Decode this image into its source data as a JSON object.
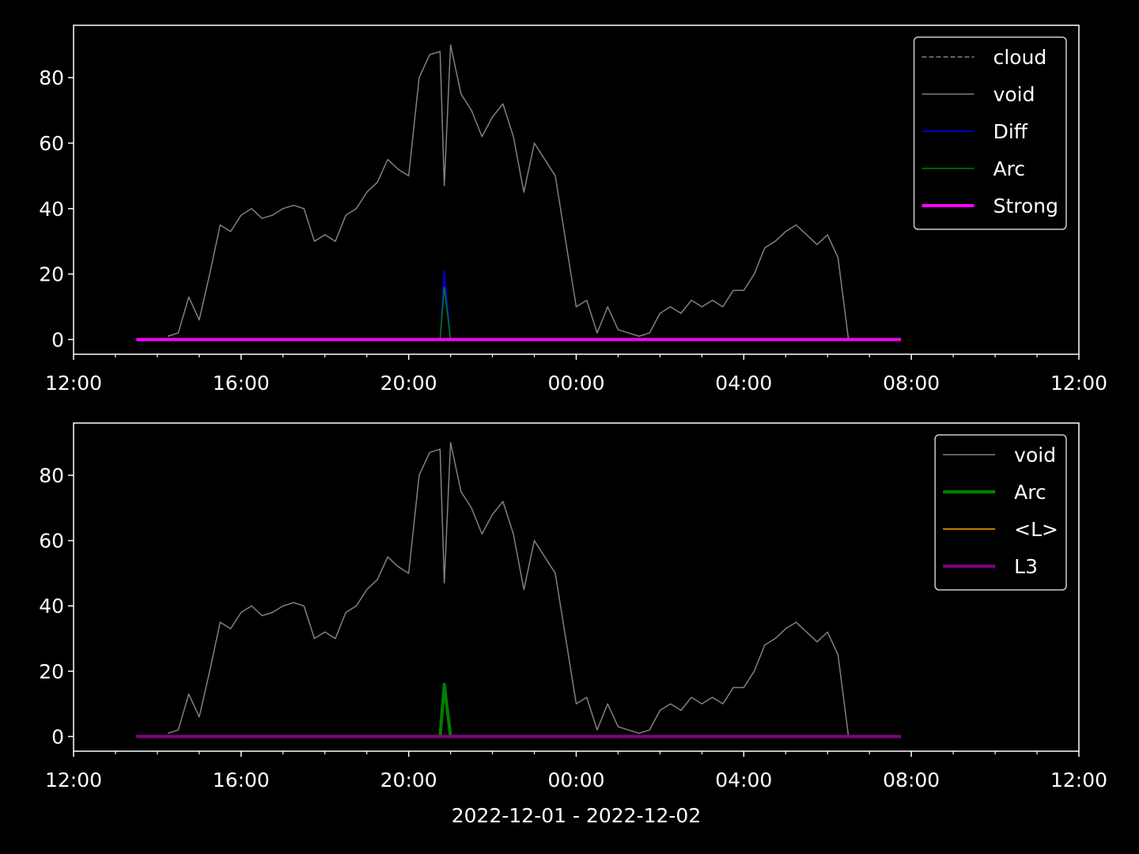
{
  "chart_data": [
    {
      "type": "line",
      "xlim": [
        12,
        36
      ],
      "xticks": [
        {
          "value": 12,
          "label": "12:00"
        },
        {
          "value": 16,
          "label": "16:00"
        },
        {
          "value": 20,
          "label": "20:00"
        },
        {
          "value": 24,
          "label": "00:00"
        },
        {
          "value": 28,
          "label": "04:00"
        },
        {
          "value": 32,
          "label": "08:00"
        },
        {
          "value": 36,
          "label": "12:00"
        }
      ],
      "xminorticks": [
        13,
        14,
        15,
        17,
        18,
        19,
        21,
        22,
        23,
        25,
        26,
        27,
        29,
        30,
        31,
        33,
        34,
        35
      ],
      "ylim": [
        -4.5,
        96
      ],
      "yticks": [
        0,
        20,
        40,
        60,
        80
      ],
      "legend": "upper right",
      "x": [
        13.5,
        13.75,
        14,
        14.25,
        14.5,
        14.75,
        15,
        15.25,
        15.5,
        15.75,
        16,
        16.25,
        16.5,
        16.75,
        17,
        17.25,
        17.5,
        17.75,
        18,
        18.25,
        18.5,
        18.75,
        19,
        19.25,
        19.5,
        19.75,
        20,
        20.25,
        20.5,
        20.75,
        20.85,
        21,
        21.25,
        21.5,
        21.75,
        22,
        22.25,
        22.5,
        22.75,
        23,
        23.25,
        23.5,
        23.75,
        24,
        24.25,
        24.5,
        24.75,
        25,
        25.25,
        25.5,
        25.75,
        26,
        26.25,
        26.5,
        26.75,
        27,
        27.25,
        27.5,
        27.75,
        28,
        28.25,
        28.5,
        28.75,
        29,
        29.25,
        29.5,
        29.75,
        30,
        30.25,
        30.5,
        30.75,
        31,
        31.25,
        31.5,
        31.75
      ],
      "series": [
        {
          "name": "cloud",
          "color": "#808080",
          "linestyle": "dashed",
          "linewidth": 1.5,
          "values": [
            0,
            0,
            0,
            0,
            0,
            0,
            0,
            0,
            0,
            0,
            0,
            0,
            0,
            0,
            0,
            0,
            0,
            0,
            0,
            0,
            0,
            0,
            0,
            0,
            0,
            0,
            0,
            0,
            0,
            0,
            0,
            0,
            0,
            0,
            0,
            0,
            0,
            0,
            0,
            0,
            0,
            0,
            0,
            0,
            0,
            0,
            0,
            0,
            0,
            0,
            0,
            0,
            0,
            0,
            0,
            0,
            0,
            0,
            0,
            0,
            0,
            0,
            0,
            0,
            0,
            0,
            0,
            0,
            0,
            0,
            0,
            0,
            0,
            0,
            0
          ]
        },
        {
          "name": "void",
          "color": "#808080",
          "linestyle": "solid",
          "linewidth": 1.5,
          "values": [
            null,
            null,
            null,
            1,
            2,
            13,
            6,
            20,
            35,
            33,
            38,
            40,
            37,
            38,
            40,
            41,
            40,
            30,
            32,
            30,
            38,
            40,
            45,
            48,
            55,
            52,
            50,
            80,
            87,
            88,
            47,
            90,
            75,
            70,
            62,
            68,
            72,
            62,
            45,
            60,
            55,
            50,
            30,
            10,
            12,
            2,
            10,
            3,
            2,
            1,
            2,
            8,
            10,
            8,
            12,
            10,
            12,
            10,
            15,
            15,
            20,
            28,
            30,
            33,
            35,
            32,
            29,
            32,
            25,
            0,
            null,
            null,
            null,
            null,
            null
          ]
        },
        {
          "name": "Diff",
          "color": "#0000ff",
          "linestyle": "solid",
          "linewidth": 1.5,
          "values": [
            0,
            0,
            0,
            0,
            0,
            0,
            0,
            0,
            0,
            0,
            0,
            0,
            0,
            0,
            0,
            0,
            0,
            0,
            0,
            0,
            0,
            0,
            0,
            0,
            0,
            0,
            0,
            0,
            0,
            0,
            21,
            0,
            0,
            0,
            0,
            0,
            0,
            0,
            0,
            0,
            0,
            0,
            0,
            0,
            0,
            0,
            0,
            0,
            0,
            0,
            0,
            0,
            0,
            0,
            0,
            0,
            0,
            0,
            0,
            0,
            0,
            0,
            0,
            0,
            0,
            0,
            0,
            0,
            0,
            0,
            0,
            0,
            0,
            0,
            0
          ]
        },
        {
          "name": "Arc",
          "color": "#008000",
          "linestyle": "solid",
          "linewidth": 1.5,
          "values": [
            0,
            0,
            0,
            0,
            0,
            0,
            0,
            0,
            0,
            0,
            0,
            0,
            0,
            0,
            0,
            0,
            0,
            0,
            0,
            0,
            0,
            0,
            0,
            0,
            0,
            0,
            0,
            0,
            0,
            0,
            16,
            0,
            0,
            0,
            0,
            0,
            0,
            0,
            0,
            0,
            0,
            0,
            0,
            0,
            0,
            0,
            0,
            0,
            0,
            0,
            0,
            0,
            0,
            0,
            0,
            0,
            0,
            0,
            0,
            0,
            0,
            0,
            0,
            0,
            0,
            0,
            0,
            0,
            0,
            0,
            0,
            0,
            0,
            0,
            0
          ]
        },
        {
          "name": "Strong",
          "color": "#ff00ff",
          "linestyle": "solid",
          "linewidth": 4,
          "values": [
            0,
            0,
            0,
            0,
            0,
            0,
            0,
            0,
            0,
            0,
            0,
            0,
            0,
            0,
            0,
            0,
            0,
            0,
            0,
            0,
            0,
            0,
            0,
            0,
            0,
            0,
            0,
            0,
            0,
            0,
            0,
            0,
            0,
            0,
            0,
            0,
            0,
            0,
            0,
            0,
            0,
            0,
            0,
            0,
            0,
            0,
            0,
            0,
            0,
            0,
            0,
            0,
            0,
            0,
            0,
            0,
            0,
            0,
            0,
            0,
            0,
            0,
            0,
            0,
            0,
            0,
            0,
            0,
            0,
            0,
            0,
            0,
            0,
            0,
            0
          ]
        }
      ]
    },
    {
      "type": "line",
      "xlabel": "2022-12-01 - 2022-12-02",
      "xlim": [
        12,
        36
      ],
      "xticks": [
        {
          "value": 12,
          "label": "12:00"
        },
        {
          "value": 16,
          "label": "16:00"
        },
        {
          "value": 20,
          "label": "20:00"
        },
        {
          "value": 24,
          "label": "00:00"
        },
        {
          "value": 28,
          "label": "04:00"
        },
        {
          "value": 32,
          "label": "08:00"
        },
        {
          "value": 36,
          "label": "12:00"
        }
      ],
      "xminorticks": [
        13,
        14,
        15,
        17,
        18,
        19,
        21,
        22,
        23,
        25,
        26,
        27,
        29,
        30,
        31,
        33,
        34,
        35
      ],
      "ylim": [
        -4.5,
        96
      ],
      "yticks": [
        0,
        20,
        40,
        60,
        80
      ],
      "legend": "upper right",
      "x": [
        13.5,
        13.75,
        14,
        14.25,
        14.5,
        14.75,
        15,
        15.25,
        15.5,
        15.75,
        16,
        16.25,
        16.5,
        16.75,
        17,
        17.25,
        17.5,
        17.75,
        18,
        18.25,
        18.5,
        18.75,
        19,
        19.25,
        19.5,
        19.75,
        20,
        20.25,
        20.5,
        20.75,
        20.85,
        21,
        21.25,
        21.5,
        21.75,
        22,
        22.25,
        22.5,
        22.75,
        23,
        23.25,
        23.5,
        23.75,
        24,
        24.25,
        24.5,
        24.75,
        25,
        25.25,
        25.5,
        25.75,
        26,
        26.25,
        26.5,
        26.75,
        27,
        27.25,
        27.5,
        27.75,
        28,
        28.25,
        28.5,
        28.75,
        29,
        29.25,
        29.5,
        29.75,
        30,
        30.25,
        30.5,
        30.75,
        31,
        31.25,
        31.5,
        31.75
      ],
      "series": [
        {
          "name": "void",
          "color": "#808080",
          "linestyle": "solid",
          "linewidth": 1.5,
          "values": [
            null,
            null,
            null,
            1,
            2,
            13,
            6,
            20,
            35,
            33,
            38,
            40,
            37,
            38,
            40,
            41,
            40,
            30,
            32,
            30,
            38,
            40,
            45,
            48,
            55,
            52,
            50,
            80,
            87,
            88,
            47,
            90,
            75,
            70,
            62,
            68,
            72,
            62,
            45,
            60,
            55,
            50,
            30,
            10,
            12,
            2,
            10,
            3,
            2,
            1,
            2,
            8,
            10,
            8,
            12,
            10,
            12,
            10,
            15,
            15,
            20,
            28,
            30,
            33,
            35,
            32,
            29,
            32,
            25,
            0,
            null,
            null,
            null,
            null,
            null
          ]
        },
        {
          "name": "Arc",
          "color": "#008000",
          "linestyle": "solid",
          "linewidth": 4,
          "values": [
            0,
            0,
            0,
            0,
            0,
            0,
            0,
            0,
            0,
            0,
            0,
            0,
            0,
            0,
            0,
            0,
            0,
            0,
            0,
            0,
            0,
            0,
            0,
            0,
            0,
            0,
            0,
            0,
            0,
            0,
            16,
            0,
            0,
            0,
            0,
            0,
            0,
            0,
            0,
            0,
            0,
            0,
            0,
            0,
            0,
            0,
            0,
            0,
            0,
            0,
            0,
            0,
            0,
            0,
            0,
            0,
            0,
            0,
            0,
            0,
            0,
            0,
            0,
            0,
            0,
            0,
            0,
            0,
            0,
            0,
            0,
            0,
            0,
            0,
            0
          ]
        },
        {
          "name": "<L>",
          "color": "#ffa500",
          "linestyle": "solid",
          "linewidth": 1.5,
          "values": [
            0,
            0,
            0,
            0,
            0,
            0,
            0,
            0,
            0,
            0,
            0,
            0,
            0,
            0,
            0,
            0,
            0,
            0,
            0,
            0,
            0,
            0,
            0,
            0,
            0,
            0,
            0,
            0,
            0,
            0,
            0,
            0,
            0,
            0,
            0,
            0,
            0,
            0,
            0,
            0,
            0,
            0,
            0,
            0,
            0,
            0,
            0,
            0,
            0,
            0,
            0,
            0,
            0,
            0,
            0,
            0,
            0,
            0,
            0,
            0,
            0,
            0,
            0,
            0,
            0,
            0,
            0,
            0,
            0,
            0,
            0,
            0,
            0,
            0,
            0
          ]
        },
        {
          "name": "L3",
          "color": "#800080",
          "linestyle": "solid",
          "linewidth": 4,
          "values": [
            0,
            0,
            0,
            0,
            0,
            0,
            0,
            0,
            0,
            0,
            0,
            0,
            0,
            0,
            0,
            0,
            0,
            0,
            0,
            0,
            0,
            0,
            0,
            0,
            0,
            0,
            0,
            0,
            0,
            0,
            0,
            0,
            0,
            0,
            0,
            0,
            0,
            0,
            0,
            0,
            0,
            0,
            0,
            0,
            0,
            0,
            0,
            0,
            0,
            0,
            0,
            0,
            0,
            0,
            0,
            0,
            0,
            0,
            0,
            0,
            0,
            0,
            0,
            0,
            0,
            0,
            0,
            0,
            0,
            0,
            0,
            0,
            0,
            0,
            0
          ]
        }
      ]
    }
  ]
}
